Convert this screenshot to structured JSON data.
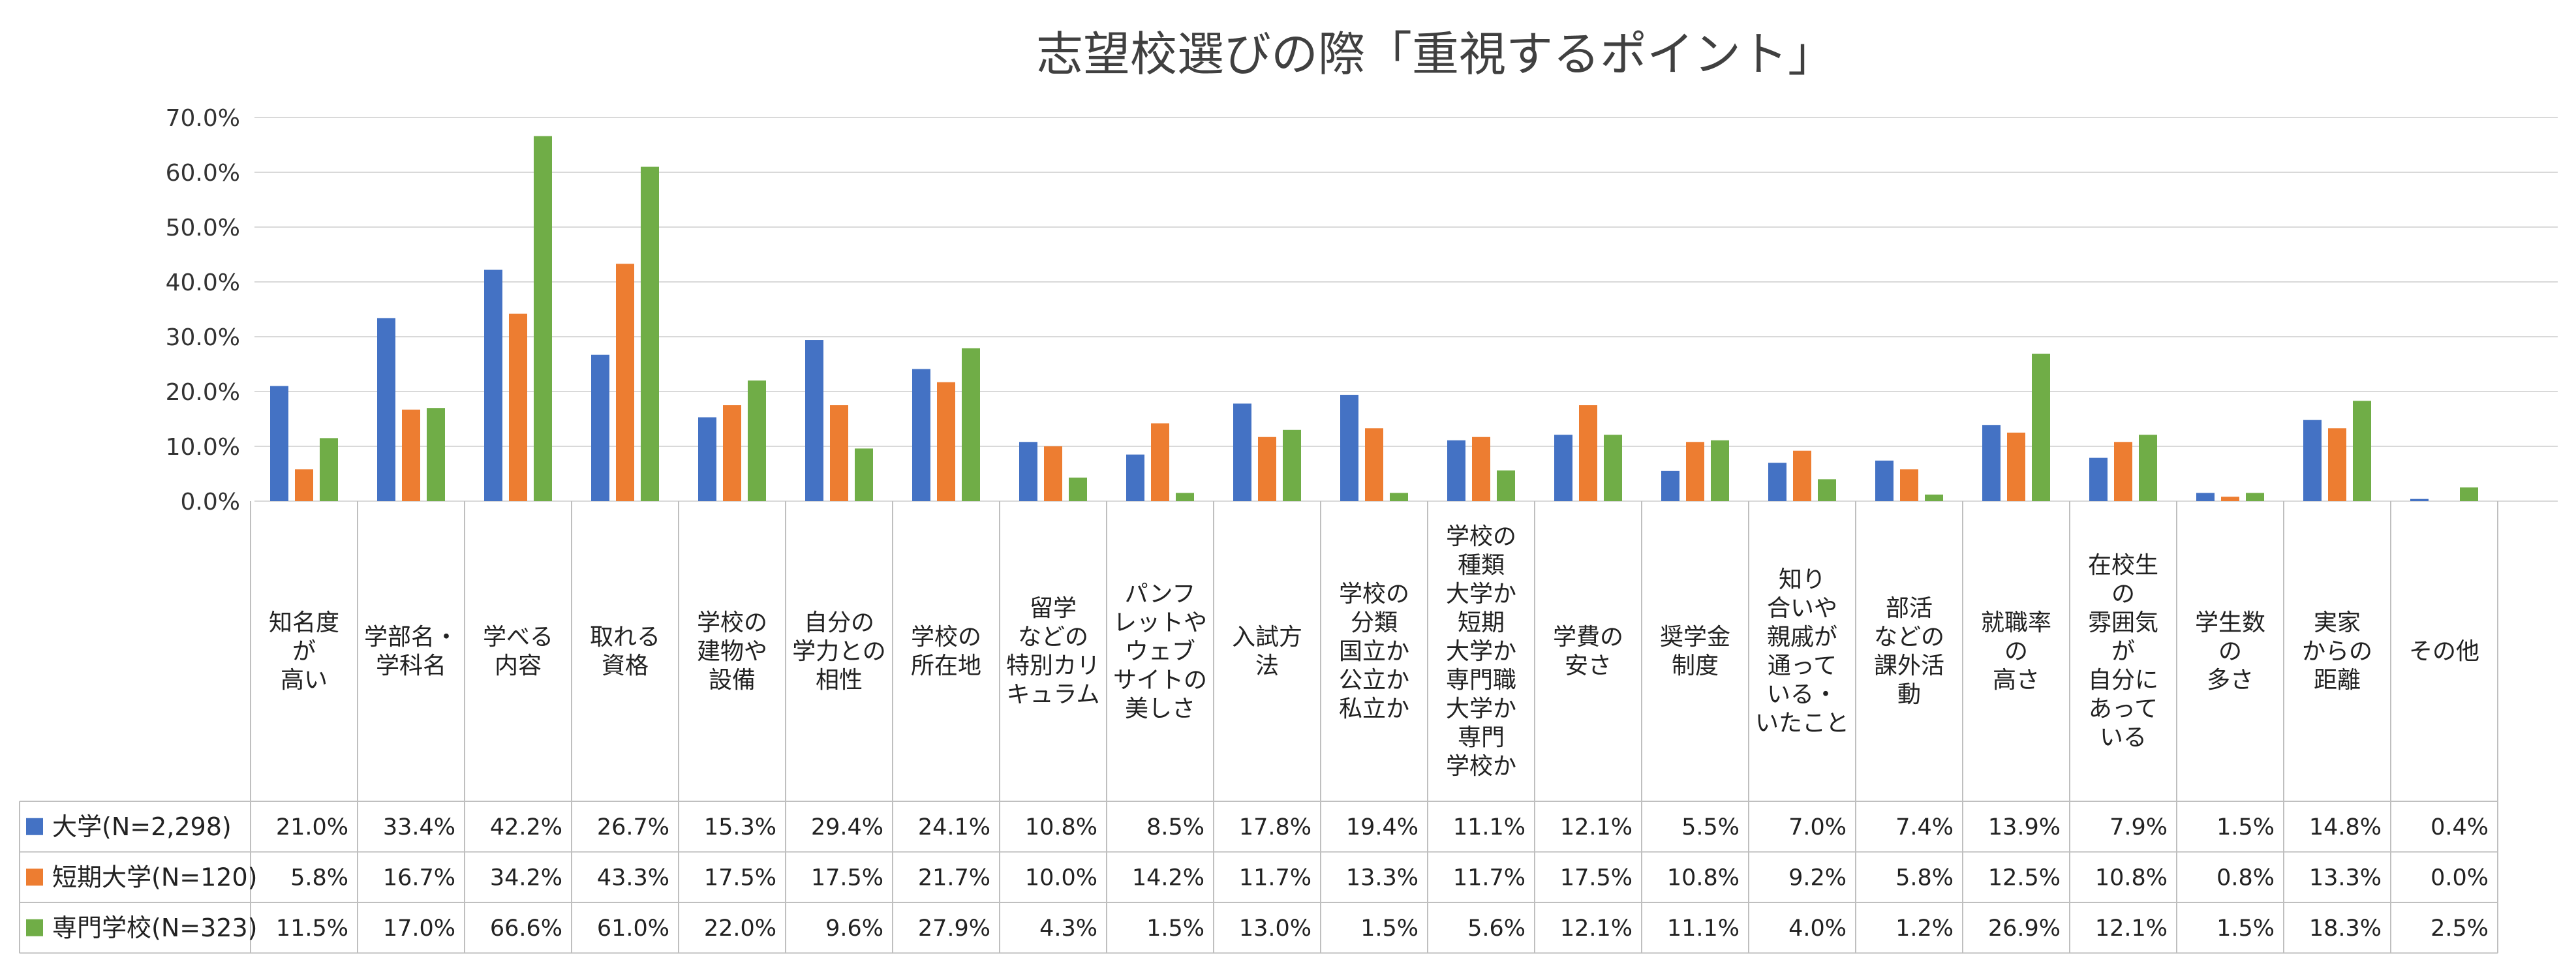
{
  "chart_data": {
    "type": "bar",
    "title": "志望校選びの際「重視するポイント」",
    "ylim": [
      0,
      70
    ],
    "y_ticks": [
      "0.0%",
      "10.0%",
      "20.0%",
      "30.0%",
      "40.0%",
      "50.0%",
      "60.0%",
      "70.0%"
    ],
    "grid": true,
    "legend": "data-table",
    "categories": [
      [
        "知名度",
        "が",
        "高い"
      ],
      [
        "学部名・",
        "学科名"
      ],
      [
        "学べる",
        "内容"
      ],
      [
        "取れる",
        "資格"
      ],
      [
        "学校の",
        "建物や",
        "設備"
      ],
      [
        "自分の",
        "学力との",
        "相性"
      ],
      [
        "学校の",
        "所在地"
      ],
      [
        "留学",
        "などの",
        "特別カリ",
        "キュラム"
      ],
      [
        "パンフ",
        "レットや",
        "ウェブ",
        "サイトの",
        "美しさ"
      ],
      [
        "入試方",
        "法"
      ],
      [
        "学校の",
        "分類",
        "国立か",
        "公立か",
        "私立か"
      ],
      [
        "学校の",
        "種類",
        "大学か",
        "短期",
        "大学か",
        "専門職",
        "大学か",
        "専門",
        "学校か"
      ],
      [
        "学費の",
        "安さ"
      ],
      [
        "奨学金",
        "制度"
      ],
      [
        "知り",
        "合いや",
        "親戚が",
        "通って",
        "いる・",
        "いたこと"
      ],
      [
        "部活",
        "などの",
        "課外活",
        "動"
      ],
      [
        "就職率",
        "の",
        "高さ"
      ],
      [
        "在校生",
        "の",
        "雰囲気",
        "が",
        "自分に",
        "あって",
        "いる"
      ],
      [
        "学生数",
        "の",
        "多さ"
      ],
      [
        "実家",
        "からの",
        "距離"
      ],
      [
        "その他"
      ]
    ],
    "series": [
      {
        "name": "大学(N=2,298)",
        "color": "#4472C4",
        "values": [
          21.0,
          33.4,
          42.2,
          26.7,
          15.3,
          29.4,
          24.1,
          10.8,
          8.5,
          17.8,
          19.4,
          11.1,
          12.1,
          5.5,
          7.0,
          7.4,
          13.9,
          7.9,
          1.5,
          14.8,
          0.4
        ],
        "labels": [
          "21.0%",
          "33.4%",
          "42.2%",
          "26.7%",
          "15.3%",
          "29.4%",
          "24.1%",
          "10.8%",
          "8.5%",
          "17.8%",
          "19.4%",
          "11.1%",
          "12.1%",
          "5.5%",
          "7.0%",
          "7.4%",
          "13.9%",
          "7.9%",
          "1.5%",
          "14.8%",
          "0.4%"
        ]
      },
      {
        "name": "短期大学(N=120)",
        "color": "#ED7D31",
        "values": [
          5.8,
          16.7,
          34.2,
          43.3,
          17.5,
          17.5,
          21.7,
          10.0,
          14.2,
          11.7,
          13.3,
          11.7,
          17.5,
          10.8,
          9.2,
          5.8,
          12.5,
          10.8,
          0.8,
          13.3,
          0.0
        ],
        "labels": [
          "5.8%",
          "16.7%",
          "34.2%",
          "43.3%",
          "17.5%",
          "17.5%",
          "21.7%",
          "10.0%",
          "14.2%",
          "11.7%",
          "13.3%",
          "11.7%",
          "17.5%",
          "10.8%",
          "9.2%",
          "5.8%",
          "12.5%",
          "10.8%",
          "0.8%",
          "13.3%",
          "0.0%"
        ]
      },
      {
        "name": "専門学校(N=323)",
        "color": "#70AD47",
        "values": [
          11.5,
          17.0,
          66.6,
          61.0,
          22.0,
          9.6,
          27.9,
          4.3,
          1.5,
          13.0,
          1.5,
          5.6,
          12.1,
          11.1,
          4.0,
          1.2,
          26.9,
          12.1,
          1.5,
          18.3,
          2.5
        ],
        "labels": [
          "11.5%",
          "17.0%",
          "66.6%",
          "61.0%",
          "22.0%",
          "9.6%",
          "27.9%",
          "4.3%",
          "1.5%",
          "13.0%",
          "1.5%",
          "5.6%",
          "12.1%",
          "11.1%",
          "4.0%",
          "1.2%",
          "26.9%",
          "12.1%",
          "1.5%",
          "18.3%",
          "2.5%"
        ]
      }
    ]
  }
}
